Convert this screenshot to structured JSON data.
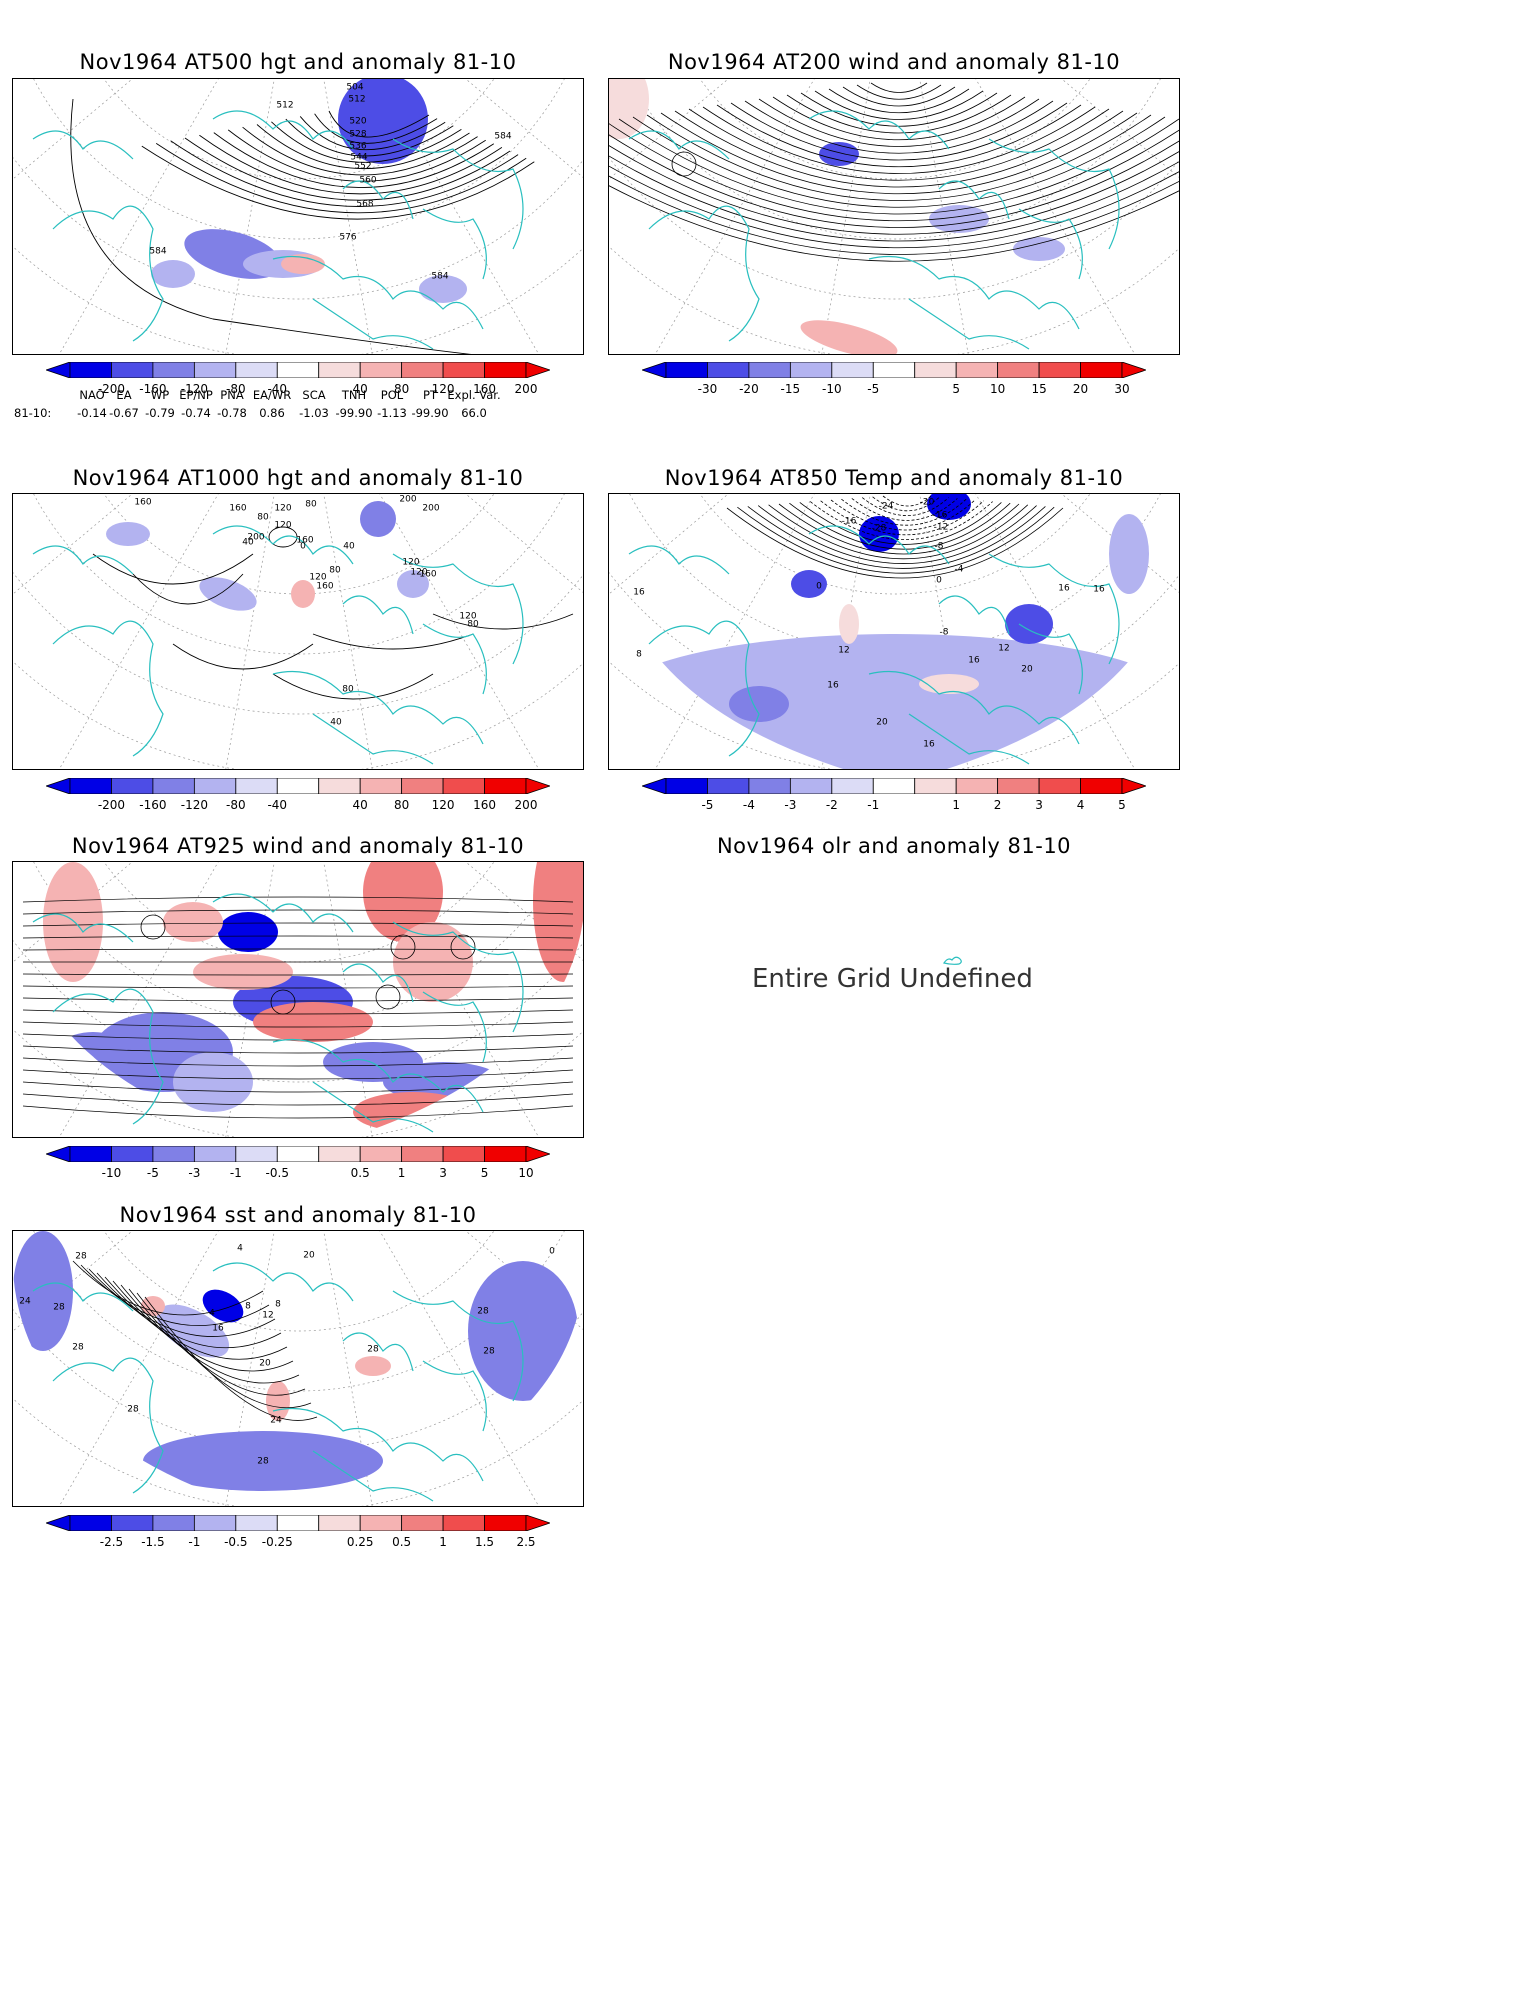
{
  "chart_data": [
    {
      "id": "at500",
      "type": "contour-map",
      "title": "Nov1964 AT500 hgt and anomaly 81-10",
      "contour_labels": [
        "504",
        "512",
        "520",
        "528",
        "536",
        "544",
        "552",
        "560",
        "568",
        "576",
        "584",
        "584",
        "584",
        "512"
      ],
      "colorbar": {
        "labels": [
          "-200",
          "-160",
          "-120",
          "-80",
          "-40",
          "40",
          "80",
          "120",
          "160",
          "200"
        ]
      },
      "teleconnection_indices": {
        "headers": [
          "NAO",
          "EA",
          "WP",
          "EP/NP",
          "PNA",
          "EA/WR",
          "SCA",
          "TNH",
          "POL",
          "PT",
          "Expl. Var."
        ],
        "row_label": "81-10:",
        "values": [
          "-0.14",
          "-0.67",
          "-0.79",
          "-0.74",
          "-0.78",
          "0.86",
          "-1.03",
          "-99.90",
          "-1.13",
          "-99.90",
          "66.0"
        ]
      }
    },
    {
      "id": "at200",
      "type": "streamline-map",
      "title": "Nov1964 AT200 wind and anomaly 81-10",
      "colorbar": {
        "labels": [
          "-30",
          "-20",
          "-15",
          "-10",
          "-5",
          "5",
          "10",
          "15",
          "20",
          "30"
        ]
      }
    },
    {
      "id": "at1000",
      "type": "contour-map",
      "title": "Nov1964 AT1000 hgt and anomaly 81-10",
      "contour_labels": [
        "160",
        "160",
        "80",
        "80",
        "40",
        "120",
        "160",
        "120",
        "200",
        "0",
        "40",
        "80",
        "120",
        "160",
        "200",
        "200",
        "120",
        "120",
        "160",
        "120",
        "80",
        "80",
        "40"
      ],
      "colorbar": {
        "labels": [
          "-200",
          "-160",
          "-120",
          "-80",
          "-40",
          "40",
          "80",
          "120",
          "160",
          "200"
        ]
      }
    },
    {
      "id": "at850",
      "type": "contour-map",
      "title": "Nov1964 AT850 Temp and anomaly 81-10",
      "contour_labels": [
        "-24",
        "-20",
        "-28",
        "-16",
        "-16",
        "-12",
        "-8",
        "16",
        "0",
        "-4",
        "0",
        "16",
        "16",
        "-8",
        "12",
        "12",
        "16",
        "20",
        "16",
        "20",
        "16",
        "8"
      ],
      "colorbar": {
        "labels": [
          "-5",
          "-4",
          "-3",
          "-2",
          "-1",
          "1",
          "2",
          "3",
          "4",
          "5"
        ]
      }
    },
    {
      "id": "at925",
      "type": "streamline-map",
      "title": "Nov1964 AT925 wind and anomaly 81-10",
      "colorbar": {
        "labels": [
          "-10",
          "-5",
          "-3",
          "-1",
          "-0.5",
          "0.5",
          "1",
          "3",
          "5",
          "10"
        ]
      }
    },
    {
      "id": "olr",
      "type": "empty",
      "title": "Nov1964 olr and anomaly 81-10",
      "message": "Entire Grid Undefined"
    },
    {
      "id": "sst",
      "type": "contour-map",
      "title": "Nov1964 sst and anomaly 81-10",
      "contour_labels": [
        "28",
        "24",
        "28",
        "28",
        "28",
        "4",
        "8",
        "12",
        "16",
        "20",
        "24",
        "28",
        "28",
        "28",
        "0",
        "4",
        "8",
        "20",
        "28"
      ],
      "colorbar": {
        "labels": [
          "-2.5",
          "-1.5",
          "-1",
          "-0.5",
          "-0.25",
          "0.25",
          "0.5",
          "1",
          "1.5",
          "2.5"
        ]
      }
    }
  ],
  "colors": {
    "coast": "#29bfbf",
    "contour": "#000000",
    "neg": [
      "#0000e6",
      "#4d4de6",
      "#8080e6",
      "#b3b3f0",
      "#dcdcf6"
    ],
    "pos": [
      "#f6dcdc",
      "#f5b3b3",
      "#f08080",
      "#f04d4d",
      "#f00000"
    ]
  }
}
